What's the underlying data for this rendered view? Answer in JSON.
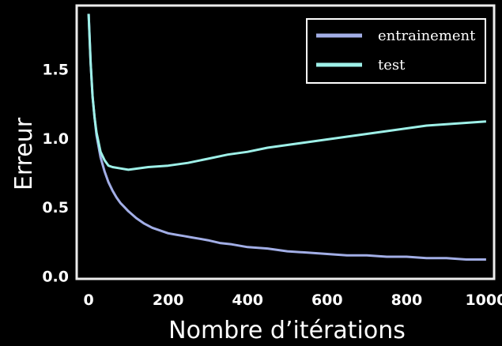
{
  "chart_data": {
    "type": "line",
    "xlabel": "Nombre d’itérations",
    "ylabel": "Erreur",
    "xlim": [
      -30,
      1020
    ],
    "ylim": [
      -0.02,
      1.96
    ],
    "xticks": [
      "0",
      "200",
      "400",
      "600",
      "800",
      "1000"
    ],
    "yticks": [
      "0.0",
      "0.5",
      "1.0",
      "1.5"
    ],
    "grid": false,
    "legend_position": "top-right",
    "series": [
      {
        "name": "entrainement",
        "color": "#a2aee6",
        "x": [
          0,
          5,
          10,
          15,
          20,
          30,
          40,
          50,
          60,
          70,
          80,
          90,
          100,
          120,
          140,
          160,
          180,
          200,
          220,
          240,
          260,
          280,
          300,
          330,
          360,
          400,
          450,
          500,
          550,
          600,
          650,
          700,
          750,
          800,
          850,
          900,
          950,
          1000
        ],
        "values": [
          1.9,
          1.55,
          1.3,
          1.15,
          1.02,
          0.86,
          0.76,
          0.68,
          0.62,
          0.57,
          0.53,
          0.5,
          0.47,
          0.42,
          0.38,
          0.35,
          0.33,
          0.31,
          0.3,
          0.29,
          0.28,
          0.27,
          0.26,
          0.24,
          0.23,
          0.21,
          0.2,
          0.18,
          0.17,
          0.16,
          0.15,
          0.15,
          0.14,
          0.14,
          0.13,
          0.13,
          0.12,
          0.12
        ]
      },
      {
        "name": "test",
        "color": "#9ef0e8",
        "x": [
          0,
          5,
          10,
          15,
          20,
          30,
          40,
          50,
          60,
          80,
          100,
          150,
          200,
          250,
          300,
          350,
          400,
          450,
          500,
          550,
          600,
          650,
          700,
          750,
          800,
          850,
          900,
          950,
          1000
        ],
        "values": [
          1.9,
          1.55,
          1.3,
          1.15,
          1.04,
          0.9,
          0.84,
          0.8,
          0.79,
          0.78,
          0.77,
          0.79,
          0.8,
          0.82,
          0.85,
          0.88,
          0.9,
          0.93,
          0.95,
          0.97,
          0.99,
          1.01,
          1.03,
          1.05,
          1.07,
          1.09,
          1.1,
          1.11,
          1.12
        ]
      }
    ]
  }
}
